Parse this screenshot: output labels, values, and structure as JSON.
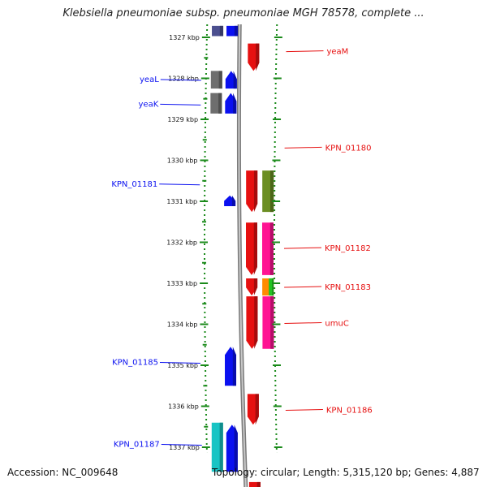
{
  "title": "Klebsiella pneumoniae subsp. pneumoniae MGH 78578, complete ...",
  "footer": {
    "accession": "Accession: NC_009648",
    "summary": "Topology: circular; Length: 5,315,120 bp; Genes: 4,887"
  },
  "colors": {
    "forward": "#0a10f0",
    "reverse": "#e61010",
    "track_guide": "#1a8a1a",
    "backbone": "#9a9a9a"
  },
  "ticks": [
    {
      "kbp": 1327,
      "label": "1327 kbp"
    },
    {
      "kbp": 1328,
      "label": "1328 kbp"
    },
    {
      "kbp": 1329,
      "label": "1329 kbp"
    },
    {
      "kbp": 1330,
      "label": "1330 kbp"
    },
    {
      "kbp": 1331,
      "label": "1331 kbp"
    },
    {
      "kbp": 1332,
      "label": "1332 kbp"
    },
    {
      "kbp": 1333,
      "label": "1333 kbp"
    },
    {
      "kbp": 1334,
      "label": "1334 kbp"
    },
    {
      "kbp": 1335,
      "label": "1335 kbp"
    },
    {
      "kbp": 1336,
      "label": "1336 kbp"
    },
    {
      "kbp": 1337,
      "label": "1337 kbp"
    }
  ],
  "features": [
    {
      "track": "fwd-outer",
      "start": 1326.72,
      "end": 1326.97,
      "color": "#4b4f8f",
      "arrow": false
    },
    {
      "track": "fwd",
      "start": 1326.72,
      "end": 1326.97,
      "color": "#0a10f0",
      "arrow": false
    },
    {
      "track": "rev",
      "start": 1327.15,
      "end": 1327.82,
      "color": "#e61010",
      "arrow": true
    },
    {
      "track": "fwd-outer",
      "start": 1327.82,
      "end": 1328.25,
      "color": "#6e6e6e",
      "arrow": false
    },
    {
      "track": "fwd",
      "start": 1327.82,
      "end": 1328.25,
      "color": "#0a10f0",
      "arrow": true
    },
    {
      "track": "fwd-outer",
      "start": 1328.36,
      "end": 1328.86,
      "color": "#6e6e6e",
      "arrow": false
    },
    {
      "track": "fwd",
      "start": 1328.36,
      "end": 1328.86,
      "color": "#0a10f0",
      "arrow": true
    },
    {
      "track": "rev",
      "start": 1330.25,
      "end": 1331.26,
      "color": "#e61010",
      "arrow": true
    },
    {
      "track": "rev-outer",
      "start": 1330.25,
      "end": 1331.26,
      "color": "#6b8e23",
      "arrow": false
    },
    {
      "track": "fwd",
      "start": 1330.86,
      "end": 1331.12,
      "color": "#0a10f0",
      "arrow": true
    },
    {
      "track": "rev",
      "start": 1331.52,
      "end": 1332.8,
      "color": "#e61010",
      "arrow": true
    },
    {
      "track": "rev-outer",
      "start": 1331.52,
      "end": 1332.8,
      "color": "#ff1493",
      "arrow": false
    },
    {
      "track": "rev",
      "start": 1332.88,
      "end": 1333.3,
      "color": "#e61010",
      "arrow": true
    },
    {
      "track": "rev-outer",
      "start": 1332.88,
      "end": 1333.3,
      "color": "#ff8c00",
      "arrow": false
    },
    {
      "track": "rev-outer2",
      "start": 1332.88,
      "end": 1333.3,
      "color": "#22c322",
      "arrow": false
    },
    {
      "track": "rev",
      "start": 1333.32,
      "end": 1334.6,
      "color": "#e61010",
      "arrow": true
    },
    {
      "track": "rev-outer",
      "start": 1333.32,
      "end": 1334.6,
      "color": "#ff1493",
      "arrow": false
    },
    {
      "track": "fwd",
      "start": 1334.55,
      "end": 1335.5,
      "color": "#0a10f0",
      "arrow": true
    },
    {
      "track": "rev",
      "start": 1335.7,
      "end": 1336.45,
      "color": "#e61010",
      "arrow": true
    },
    {
      "track": "fwd-outer",
      "start": 1336.4,
      "end": 1337.6,
      "color": "#18c4c4",
      "arrow": false
    },
    {
      "track": "fwd",
      "start": 1336.45,
      "end": 1337.6,
      "color": "#0a10f0",
      "arrow": true
    },
    {
      "track": "rev",
      "start": 1337.85,
      "end": 1338.0,
      "color": "#e61010",
      "arrow": false
    }
  ],
  "labels": [
    {
      "text": "yeaM",
      "side": "right",
      "kbp": 1327.35
    },
    {
      "text": "yeaL",
      "side": "left",
      "kbp": 1328.05
    },
    {
      "text": "yeaK",
      "side": "left",
      "kbp": 1328.65
    },
    {
      "text": "KPN_01180",
      "side": "right",
      "kbp": 1329.7
    },
    {
      "text": "KPN_01181",
      "side": "left",
      "kbp": 1330.6
    },
    {
      "text": "KPN_01182",
      "side": "right",
      "kbp": 1332.15
    },
    {
      "text": "KPN_01183",
      "side": "right",
      "kbp": 1333.1
    },
    {
      "text": "umuC",
      "side": "right",
      "kbp": 1333.98
    },
    {
      "text": "KPN_01185",
      "side": "left",
      "kbp": 1334.95
    },
    {
      "text": "KPN_01186",
      "side": "right",
      "kbp": 1336.1
    },
    {
      "text": "KPN_01187",
      "side": "left",
      "kbp": 1336.95
    }
  ]
}
